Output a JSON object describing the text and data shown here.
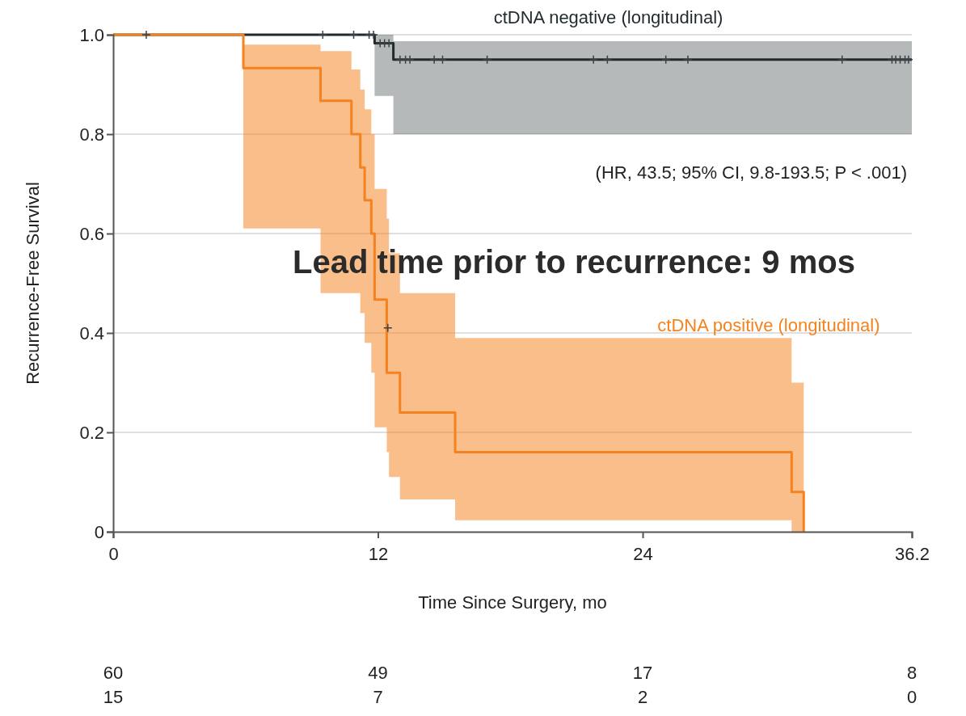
{
  "chart_data": {
    "type": "step",
    "xlabel": "Time Since Surgery, mo",
    "ylabel": "Recurrence-Free Survival",
    "xlim": [
      0,
      36.2
    ],
    "xticks": [
      0,
      12,
      24,
      36.2
    ],
    "ylim": [
      0,
      1
    ],
    "yticks": [
      0,
      {
        "value": 0.2,
        "label": "0.2"
      },
      {
        "value": 0.4,
        "label": "0.4"
      },
      {
        "value": 0.6,
        "label": "0.6"
      },
      {
        "value": 0.8,
        "label": "0.8"
      },
      {
        "value": 1,
        "label": "1.0"
      }
    ],
    "grid": "y",
    "series": [
      {
        "name": "ctDNA negative (longitudinal)",
        "color": "#1f2a2e",
        "x": [
          0,
          11.85,
          12.7,
          36.2
        ],
        "values": [
          1,
          0.983,
          0.95,
          0.95
        ],
        "lower": [
          1,
          0.877,
          0.8,
          0.8
        ],
        "upper": [
          1,
          1,
          0.987,
          0.987
        ]
      },
      {
        "name": "ctDNA positive (longitudinal)",
        "color": "#f5821f",
        "x": [
          0,
          5.9,
          9.4,
          10.8,
          11.2,
          11.4,
          11.7,
          11.85,
          12.4,
          12.5,
          13.0,
          15.5,
          30.75,
          31.3
        ],
        "values": [
          1,
          0.933,
          0.867,
          0.8,
          0.733,
          0.667,
          0.6,
          0.467,
          0.32,
          0.32,
          0.24,
          0.16,
          0.08,
          0
        ],
        "lower": [
          1,
          0.61,
          0.48,
          0.48,
          0.44,
          0.38,
          0.32,
          0.21,
          0.16,
          0.11,
          0.065,
          0.023,
          0,
          0
        ],
        "upper": [
          1,
          0.98,
          0.967,
          0.93,
          0.89,
          0.85,
          0.8,
          0.69,
          0.63,
          0.56,
          0.48,
          0.39,
          0.3,
          0
        ]
      },
      {
        "type": "scatter",
        "marker": "cross",
        "color": "#3a4246",
        "x": [
          1.5,
          9.5,
          10.9,
          11.6,
          11.8,
          12.1,
          12.3,
          12.5,
          12.45,
          13.0,
          13.25,
          13.45,
          14.55,
          14.93,
          16.95,
          21.77,
          22.4,
          25.05,
          26.05,
          33.04,
          35.3,
          35.47,
          35.67,
          35.89,
          36.05
        ],
        "values": [
          1,
          1,
          1,
          1,
          1,
          0.983,
          0.983,
          0.983,
          0.41,
          0.95,
          0.95,
          0.95,
          0.95,
          0.95,
          0.95,
          0.95,
          0.95,
          0.95,
          0.95,
          0.95,
          0.95,
          0.95,
          0.95,
          0.95,
          0.95
        ]
      }
    ],
    "annotations": [
      "(HR, 43.5; 95% CI, 9.8-193.5; P < .001)",
      "Lead time prior to recurrence: 9 mos",
      "60",
      "49",
      "17",
      "8",
      "15",
      "7",
      "2",
      "0"
    ]
  }
}
